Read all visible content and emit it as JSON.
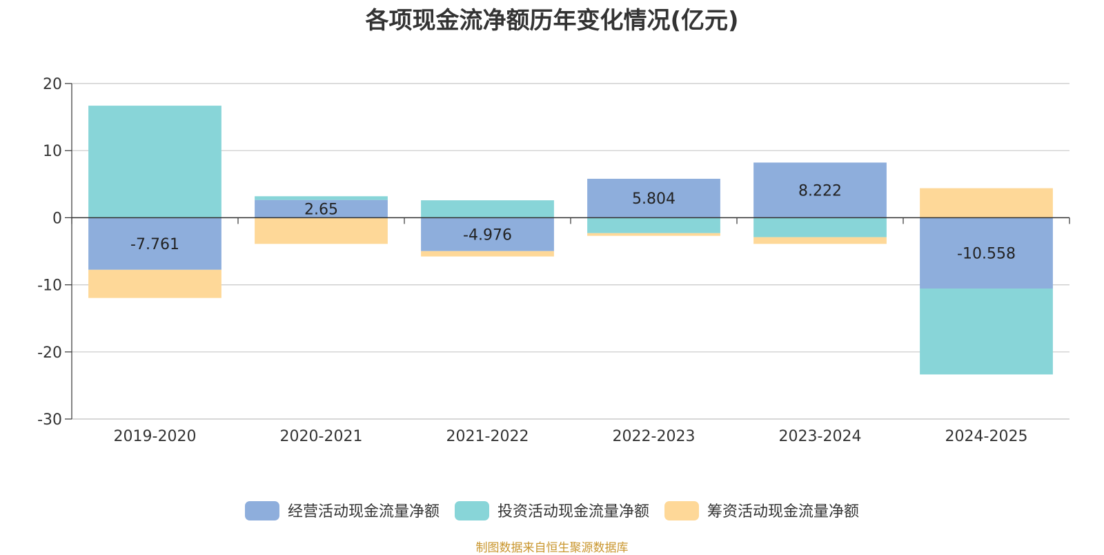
{
  "chart_data": {
    "type": "bar",
    "stacked": true,
    "title": "各项现金流净额历年变化情况(亿元)",
    "xlabel": "",
    "ylabel": "",
    "categories": [
      "2019-2020",
      "2020-2021",
      "2021-2022",
      "2022-2023",
      "2023-2024",
      "2024-2025"
    ],
    "ylim": [
      -30,
      20
    ],
    "yticks": [
      20,
      10,
      0,
      -10,
      -20,
      -30
    ],
    "grid": true,
    "legend_position": "bottom",
    "series": [
      {
        "name": "经营活动现金流量净额",
        "color": "#8eaedc",
        "values": [
          -7.761,
          2.65,
          -4.976,
          5.804,
          8.222,
          -10.558
        ],
        "labels": [
          "-7.761",
          "2.65",
          "-4.976",
          "5.804",
          "8.222",
          "-10.558"
        ]
      },
      {
        "name": "投资活动现金流量净额",
        "color": "#88d5d8",
        "values": [
          16.7,
          0.55,
          2.6,
          -2.3,
          -2.9,
          -12.8
        ]
      },
      {
        "name": "筹资活动现金流量净额",
        "color": "#fed898",
        "values": [
          -4.2,
          -3.9,
          -0.8,
          -0.4,
          -1.0,
          4.4
        ]
      }
    ]
  },
  "source": "制图数据来自恒生聚源数据库"
}
